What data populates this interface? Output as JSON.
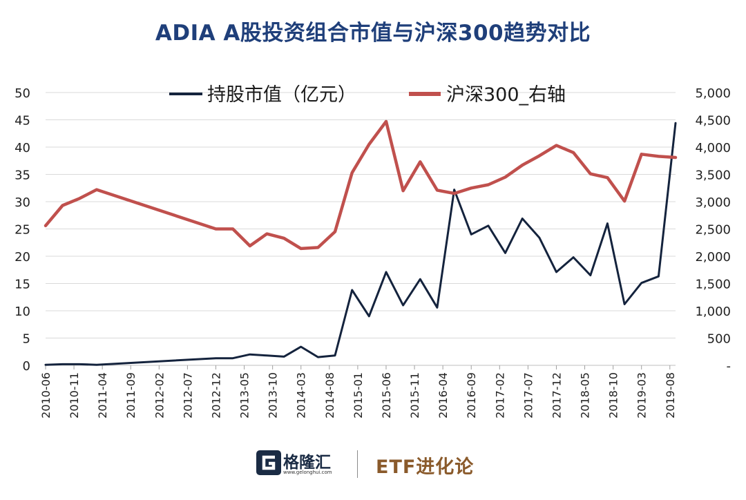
{
  "title": "ADIA A股投资组合市值与沪深300趋势对比",
  "colors": {
    "title": "#1f3f7a",
    "series_left": "#14233d",
    "series_right": "#c0504d",
    "brand_dark": "#1a2b44",
    "brand_gold": "#8a5a2b"
  },
  "footer": {
    "logo_name": "格隆汇",
    "logo_url": "www.gelonghui.com",
    "brand2": "ETF进化论"
  },
  "chart_data": {
    "type": "line",
    "x_tick_labels": [
      "2010-06",
      "2010-11",
      "2011-04",
      "2011-09",
      "2012-02",
      "2012-07",
      "2012-12",
      "2013-05",
      "2013-10",
      "2014-03",
      "2014-08",
      "2015-01",
      "2015-06",
      "2015-11",
      "2016-04",
      "2016-09",
      "2017-02",
      "2017-07",
      "2017-12",
      "2018-05",
      "2018-10",
      "2019-03",
      "2019-08"
    ],
    "left_axis": {
      "min": 0,
      "max": 50,
      "step": 5,
      "tick_labels": [
        "0",
        "5",
        "10",
        "15",
        "20",
        "25",
        "30",
        "35",
        "40",
        "45",
        "50"
      ]
    },
    "right_axis": {
      "min": 0,
      "max": 5000,
      "step": 500,
      "tick_labels": [
        "-",
        "500",
        "1,000",
        "1,500",
        "2,000",
        "2,500",
        "3,000",
        "3,500",
        "4,000",
        "4,500",
        "5,000"
      ]
    },
    "grid": true,
    "legend_position": "top",
    "series": [
      {
        "name": "持股市值（亿元）",
        "axis": "left",
        "points": [
          [
            "2010-06",
            0.1
          ],
          [
            "2010-09",
            0.2
          ],
          [
            "2010-12",
            0.2
          ],
          [
            "2011-03",
            0.1
          ],
          [
            "2012-12",
            1.3
          ],
          [
            "2013-03",
            1.3
          ],
          [
            "2013-06",
            2.0
          ],
          [
            "2013-09",
            1.8
          ],
          [
            "2013-12",
            1.6
          ],
          [
            "2014-03",
            3.4
          ],
          [
            "2014-06",
            1.5
          ],
          [
            "2014-09",
            1.8
          ],
          [
            "2014-12",
            13.8
          ],
          [
            "2015-03",
            9.0
          ],
          [
            "2015-06",
            17.1
          ],
          [
            "2015-09",
            11.0
          ],
          [
            "2015-12",
            15.8
          ],
          [
            "2016-03",
            10.6
          ],
          [
            "2016-06",
            32.2
          ],
          [
            "2016-09",
            24.0
          ],
          [
            "2016-12",
            25.6
          ],
          [
            "2017-03",
            20.6
          ],
          [
            "2017-06",
            26.9
          ],
          [
            "2017-09",
            23.4
          ],
          [
            "2017-12",
            17.1
          ],
          [
            "2018-03",
            19.8
          ],
          [
            "2018-06",
            16.5
          ],
          [
            "2018-09",
            26.0
          ],
          [
            "2018-12",
            11.2
          ],
          [
            "2019-03",
            15.1
          ],
          [
            "2019-06",
            16.3
          ],
          [
            "2019-09",
            44.4
          ]
        ]
      },
      {
        "name": "沪深300_右轴",
        "axis": "right",
        "points": [
          [
            "2010-06",
            2560
          ],
          [
            "2010-09",
            2930
          ],
          [
            "2010-12",
            3060
          ],
          [
            "2011-03",
            3220
          ],
          [
            "2012-12",
            2500
          ],
          [
            "2013-03",
            2500
          ],
          [
            "2013-06",
            2190
          ],
          [
            "2013-09",
            2410
          ],
          [
            "2013-12",
            2330
          ],
          [
            "2014-03",
            2140
          ],
          [
            "2014-06",
            2160
          ],
          [
            "2014-09",
            2450
          ],
          [
            "2014-12",
            3530
          ],
          [
            "2015-03",
            4050
          ],
          [
            "2015-06",
            4470
          ],
          [
            "2015-09",
            3200
          ],
          [
            "2015-12",
            3730
          ],
          [
            "2016-03",
            3210
          ],
          [
            "2016-06",
            3150
          ],
          [
            "2016-09",
            3250
          ],
          [
            "2016-12",
            3310
          ],
          [
            "2017-03",
            3450
          ],
          [
            "2017-06",
            3670
          ],
          [
            "2017-09",
            3840
          ],
          [
            "2017-12",
            4030
          ],
          [
            "2018-03",
            3900
          ],
          [
            "2018-06",
            3510
          ],
          [
            "2018-09",
            3440
          ],
          [
            "2018-12",
            3010
          ],
          [
            "2019-03",
            3870
          ],
          [
            "2019-06",
            3830
          ],
          [
            "2019-09",
            3810
          ]
        ]
      }
    ]
  }
}
